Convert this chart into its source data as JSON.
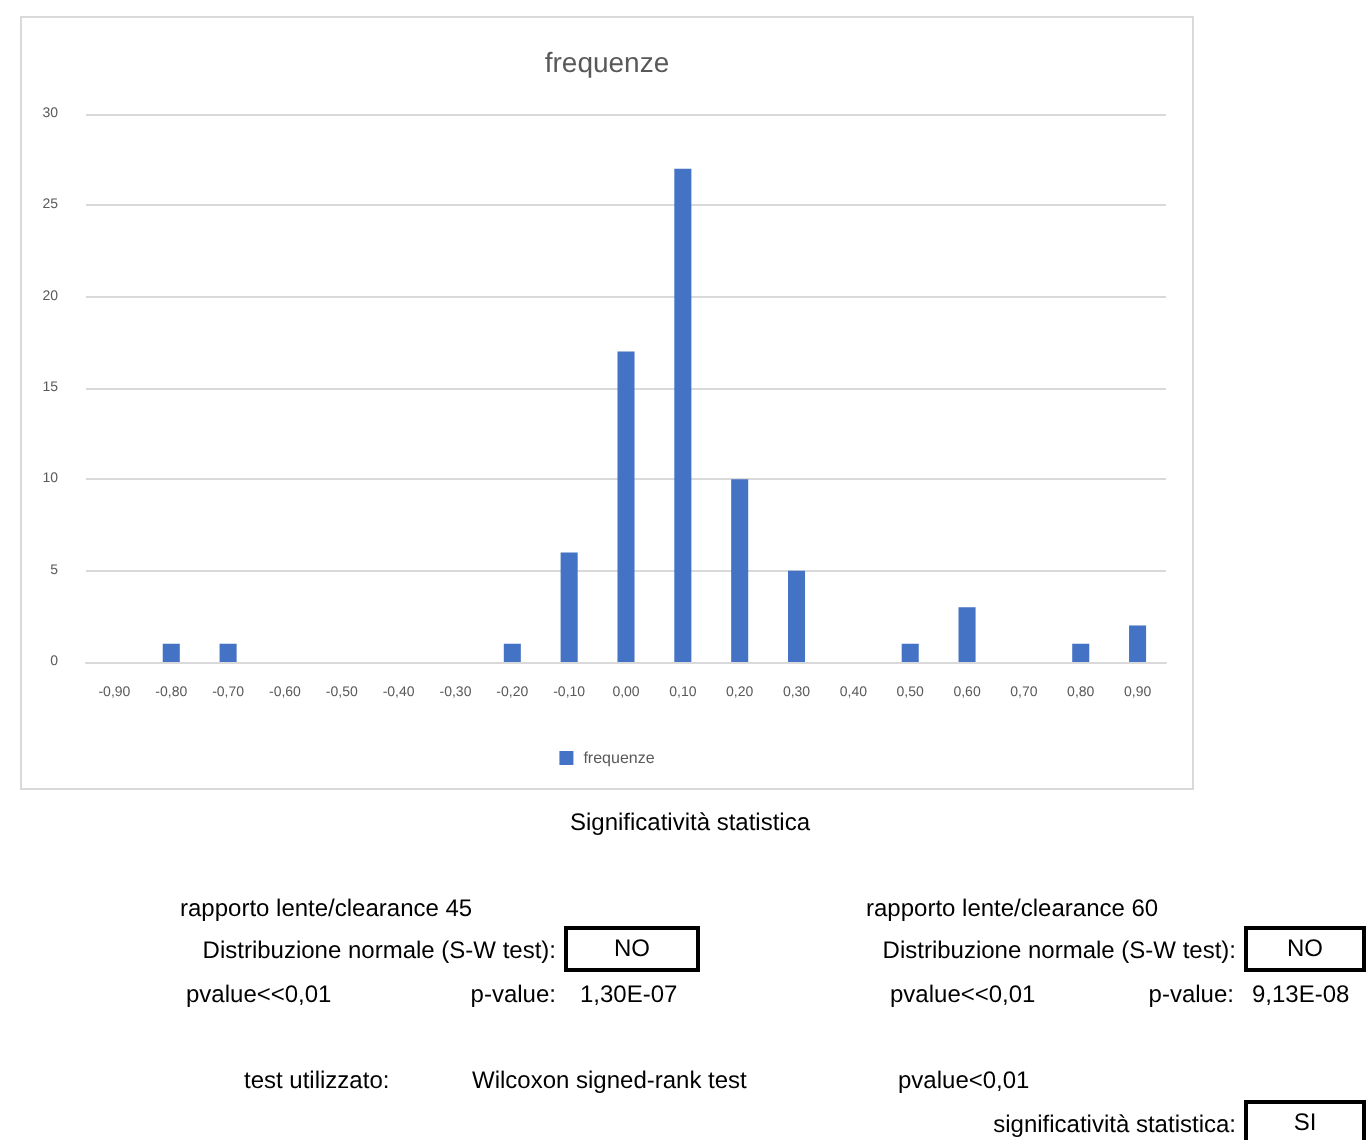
{
  "chart_data": {
    "type": "bar",
    "title": "frequenze",
    "categories": [
      "-0,90",
      "-0,80",
      "-0,70",
      "-0,60",
      "-0,50",
      "-0,40",
      "-0,30",
      "-0,20",
      "-0,10",
      "0,00",
      "0,10",
      "0,20",
      "0,30",
      "0,40",
      "0,50",
      "0,60",
      "0,70",
      "0,80",
      "0,90"
    ],
    "series": [
      {
        "name": "frequenze",
        "color": "#4472c4",
        "values": [
          0,
          1,
          1,
          0,
          0,
          0,
          0,
          1,
          6,
          17,
          27,
          10,
          5,
          0,
          1,
          3,
          0,
          1,
          2
        ]
      }
    ],
    "ylim": [
      0,
      30
    ],
    "yticks": [
      0,
      5,
      10,
      15,
      20,
      25,
      30
    ],
    "grid": "y",
    "legend": "bottom",
    "annotations": [
      "Significatività statistica",
      "rapporto lente/clearance 45",
      "Distribuzione normale (S-W test):",
      "NO",
      "pvalue<<0,01",
      "p-value:",
      "1,30E-07",
      "rapporto lente/clearance 60",
      "Distribuzione normale (S-W test):",
      "NO",
      "pvalue<<0,01",
      "p-value:",
      "9,13E-08",
      "test utilizzato:",
      "Wilcoxon signed-rank test",
      "pvalue<0,01",
      "significatività statistica:",
      "SI"
    ]
  }
}
